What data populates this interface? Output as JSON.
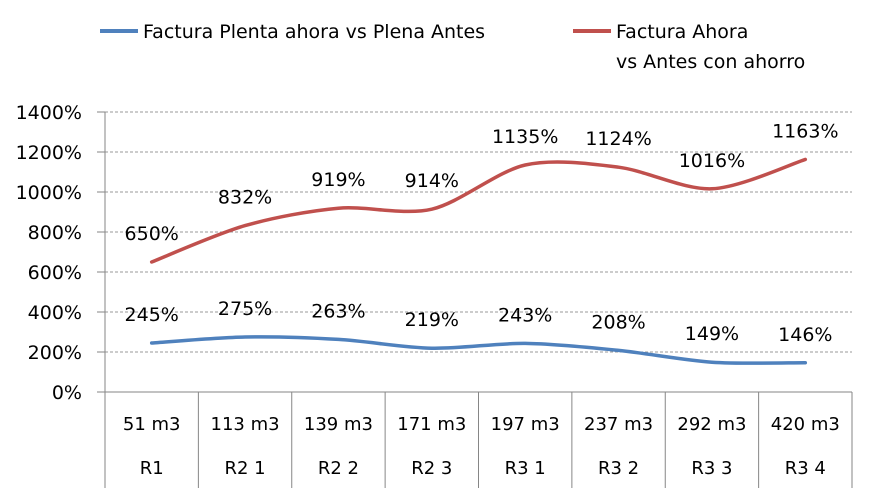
{
  "chart_data": {
    "type": "line",
    "categories": [
      [
        "51 m3",
        "R1"
      ],
      [
        "113 m3",
        "R2 1"
      ],
      [
        "139 m3",
        "R2 2"
      ],
      [
        "171 m3",
        "R2 3"
      ],
      [
        "197 m3",
        "R3 1"
      ],
      [
        "237 m3",
        "R3 2"
      ],
      [
        "292 m3",
        "R3 3"
      ],
      [
        "420 m3",
        "R3 4"
      ]
    ],
    "series": [
      {
        "name": "Factura Plenta ahora vs Plena Antes",
        "name_lines": [
          "Factura Plenta ahora vs Plena Antes"
        ],
        "color": "#4f81bd",
        "values": [
          245,
          275,
          263,
          219,
          243,
          208,
          149,
          146
        ],
        "labels": [
          "245%",
          "275%",
          "263%",
          "219%",
          "243%",
          "208%",
          "149%",
          "146%"
        ]
      },
      {
        "name": "Factura Ahora vs Antes con ahorro",
        "name_lines": [
          "Factura Ahora",
          "vs Antes con ahorro"
        ],
        "color": "#c0504d",
        "values": [
          650,
          832,
          919,
          914,
          1135,
          1124,
          1016,
          1163
        ],
        "labels": [
          "650%",
          "832%",
          "919%",
          "914%",
          "1135%",
          "1124%",
          "1016%",
          "1163%"
        ]
      }
    ],
    "yticks": [
      "0%",
      "200%",
      "400%",
      "600%",
      "800%",
      "1000%",
      "1200%",
      "1400%"
    ],
    "ylim": [
      0,
      1400
    ],
    "grid": true,
    "legend": "top",
    "xlabel": "",
    "ylabel": "",
    "title": ""
  }
}
